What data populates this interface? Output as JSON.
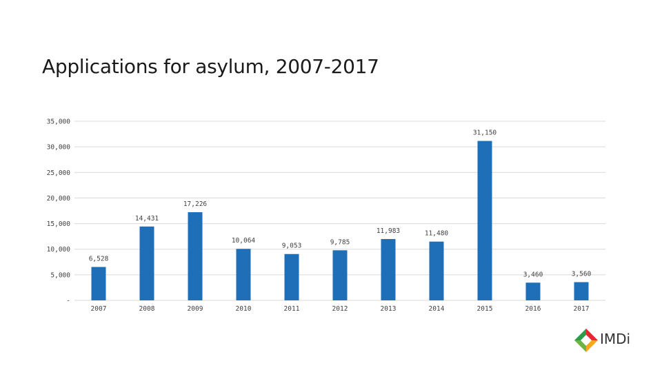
{
  "slide": {
    "title": "Applications for asylum, 2007-2017"
  },
  "brand": {
    "logo_text": "IMDi"
  },
  "colors": {
    "bar": "#1f6eb8",
    "grid": "#d9d9d9",
    "text": "#404040"
  },
  "chart_data": {
    "type": "bar",
    "title": "",
    "xlabel": "",
    "ylabel": "",
    "categories": [
      "2007",
      "2008",
      "2009",
      "2010",
      "2011",
      "2012",
      "2013",
      "2014",
      "2015",
      "2016",
      "2017"
    ],
    "values": [
      6528,
      14431,
      17226,
      10064,
      9053,
      9785,
      11983,
      11480,
      31150,
      3460,
      3560
    ],
    "data_labels": [
      "6,528",
      "14,431",
      "17,226",
      "10,064",
      "9,053",
      "9,785",
      "11,983",
      "11,480",
      "31,150",
      "3,460",
      "3,560"
    ],
    "ylim": [
      0,
      35000
    ],
    "yticks": [
      0,
      5000,
      10000,
      15000,
      20000,
      25000,
      30000,
      35000
    ],
    "ytick_labels": [
      "-",
      "5,000",
      "10,000",
      "15,000",
      "20,000",
      "25,000",
      "30,000",
      "35,000"
    ],
    "grid": true,
    "legend": "none"
  }
}
